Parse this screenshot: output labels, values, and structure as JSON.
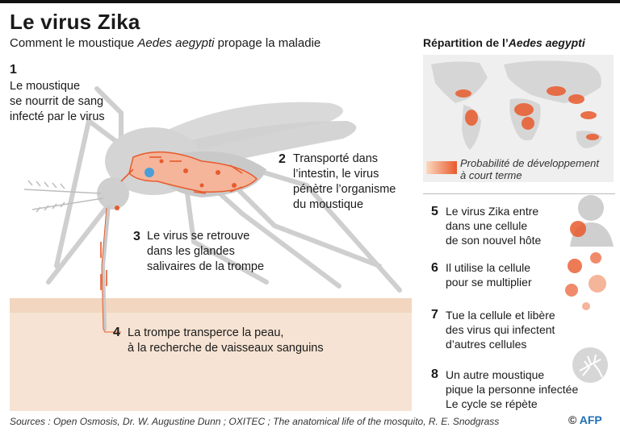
{
  "header": {
    "title": "Le virus Zika",
    "subtitle_pre": "Comment le moustique ",
    "subtitle_species": "Aedes aegypti",
    "subtitle_post": " propage la maladie"
  },
  "steps": [
    {
      "num": "1",
      "lines": [
        "Le moustique",
        "se nourrit de sang",
        "infecté par le virus"
      ]
    },
    {
      "num": "2",
      "lines": [
        "Transporté dans",
        "l’intestin, le virus",
        "pénètre l’organisme",
        "du moustique"
      ]
    },
    {
      "num": "3",
      "lines": [
        "Le virus se retrouve",
        "dans les glandes",
        "salivaires de la trompe"
      ]
    },
    {
      "num": "4",
      "lines": [
        "La trompe transperce la peau,",
        "à la recherche de vaisseaux sanguins"
      ]
    },
    {
      "num": "5",
      "lines": [
        "Le virus Zika entre",
        "dans une cellule",
        "de son nouvel hôte"
      ]
    },
    {
      "num": "6",
      "lines": [
        "Il utilise la cellule",
        "pour se multiplier"
      ]
    },
    {
      "num": "7",
      "lines": [
        "Tue la cellule et libère",
        "des virus qui infectent",
        "d’autres cellules"
      ]
    },
    {
      "num": "8",
      "lines": [
        "Un autre moustique",
        "pique la personne infectée",
        "Le cycle se répète"
      ]
    }
  ],
  "distribution": {
    "title_pre": "Répartition de l’",
    "title_species": "Aedes aegypti",
    "legend": [
      "Probabilité de développement",
      "à court terme"
    ],
    "legend_colors": [
      "#fbd9c0",
      "#e85a2c"
    ]
  },
  "colors": {
    "accent": "#e85a2c",
    "gray": "#c9c9c9",
    "skin": "#f6e3d3",
    "virus_blue": "#4a9fd8"
  },
  "footer": {
    "sources": "Sources : Open Osmosis, Dr. W. Augustine Dunn ; OXITEC ; The anatomical life of the mosquito, R. E. Snodgrass",
    "copyright": "©",
    "agency": "AFP"
  }
}
